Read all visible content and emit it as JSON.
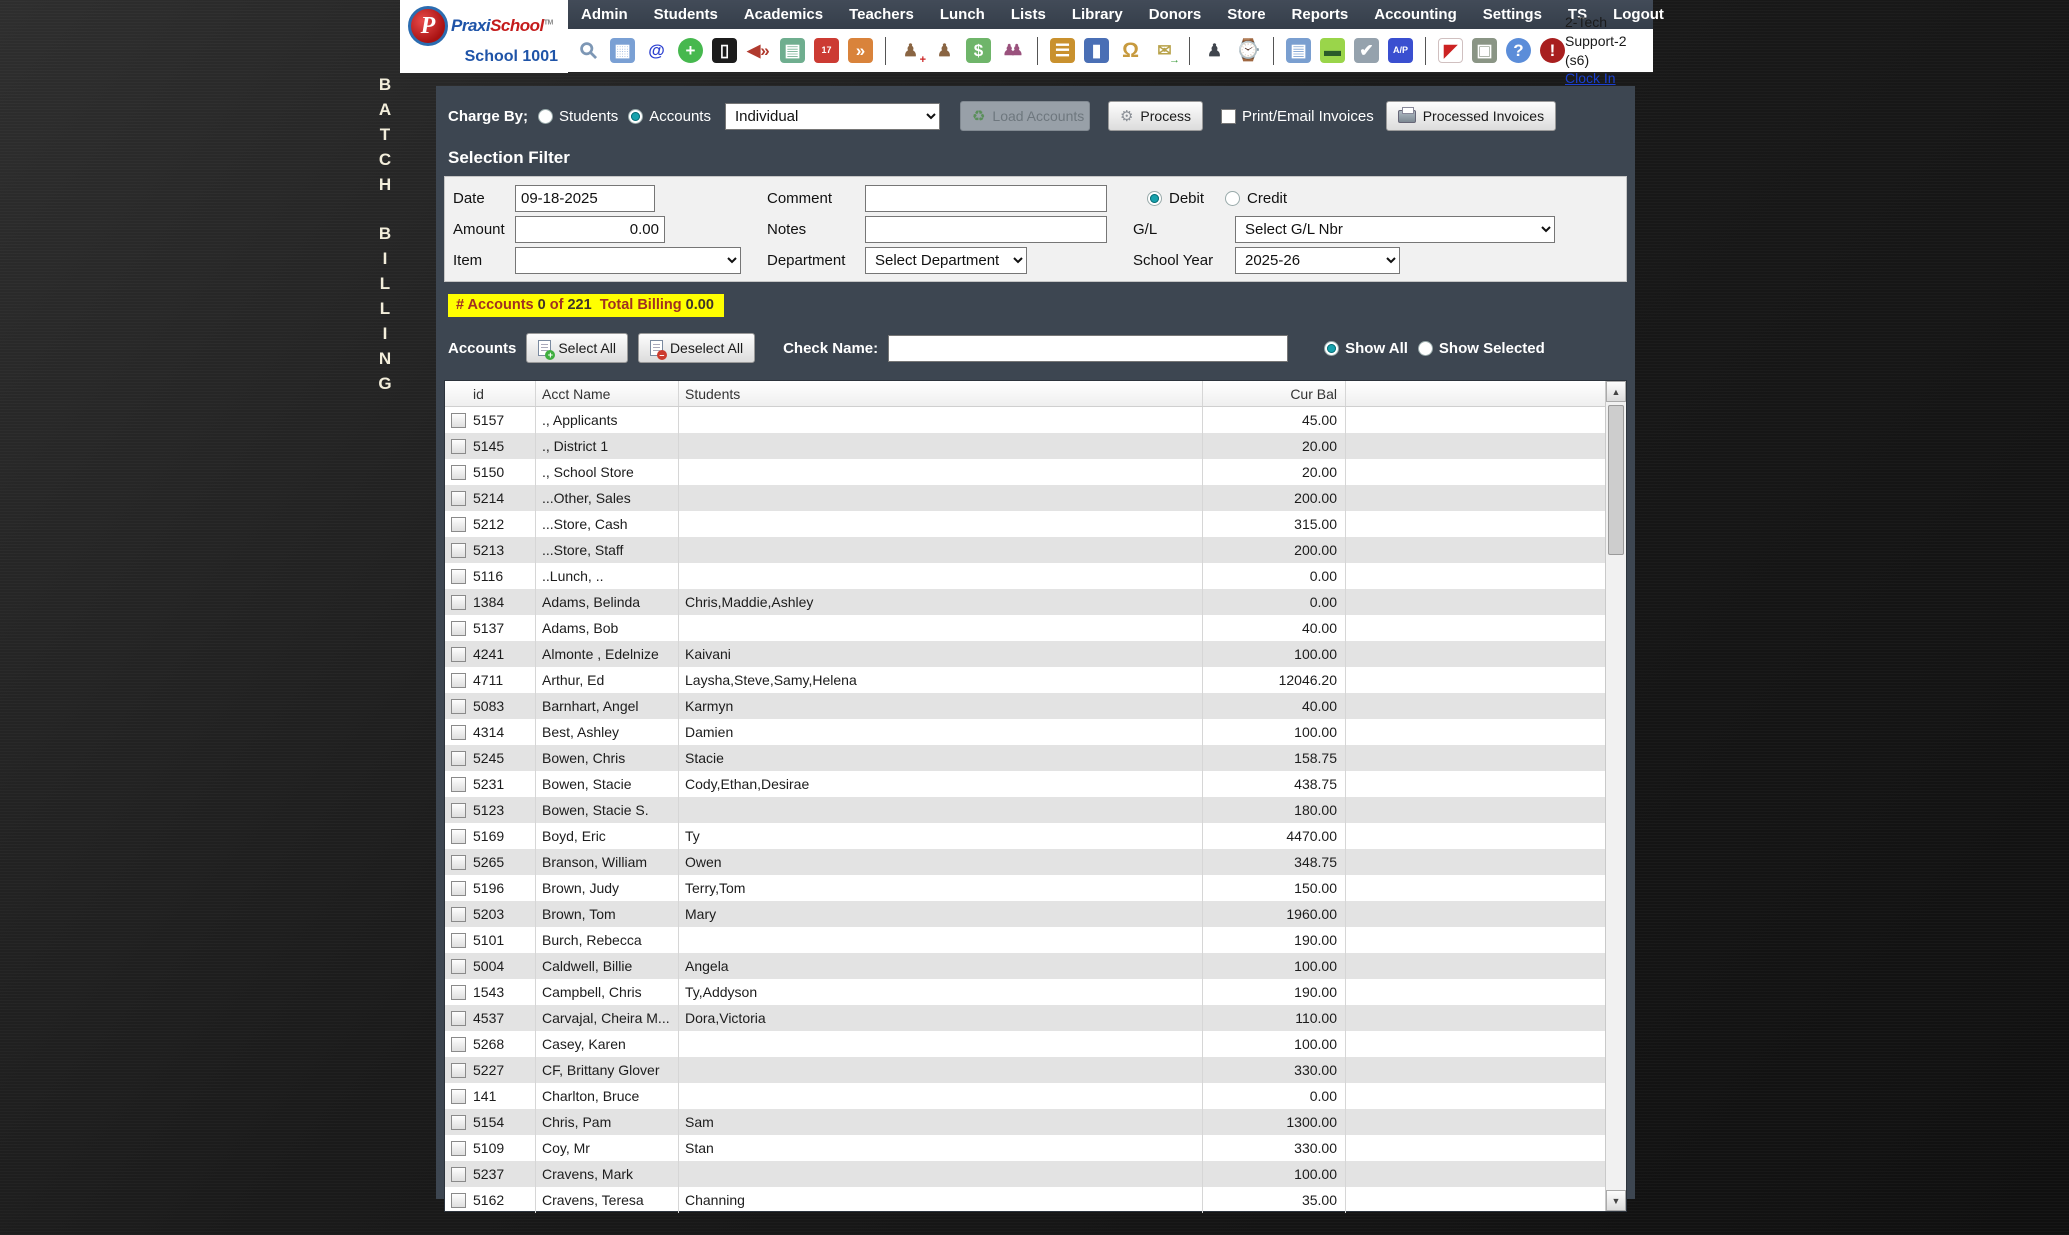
{
  "colors": {
    "teal": "#18a2ad",
    "nav_bg": "#3a4350",
    "panel_bg": "#3d4651",
    "highlight_yellow": "#ffff00",
    "maroon": "#a03022"
  },
  "vertical_banner": {
    "line1": "BATCH",
    "line2": "BILLING"
  },
  "header": {
    "logo": {
      "monogram": "P",
      "brand_part1": "Praxi",
      "brand_part2": "School",
      "trademark": "TM",
      "school_label": "School 1001"
    },
    "nav_items": [
      "Admin",
      "Students",
      "Academics",
      "Teachers",
      "Lunch",
      "Lists",
      "Library",
      "Donors",
      "Store",
      "Reports",
      "Accounting",
      "Settings",
      "TS",
      "Logout"
    ],
    "toolbar_groups": [
      [
        {
          "name": "search-icon",
          "glyph": "⚲",
          "fg": "#7d97b5",
          "cls": "rot"
        },
        {
          "name": "calendar-grid-icon",
          "glyph": "▦",
          "fg": "#fff",
          "bg": "#7aa0d4"
        },
        {
          "name": "email-at-icon",
          "glyph": "@",
          "fg": "#2b3fd0"
        },
        {
          "name": "chat-add-icon",
          "glyph": "+",
          "fg": "#fff",
          "bg": "#46b84e",
          "cls": "round"
        },
        {
          "name": "mobile-phone-icon",
          "glyph": "▯",
          "fg": "#fff",
          "bg": "#1c1c1c"
        },
        {
          "name": "speaker-icon",
          "glyph": "◀»",
          "fg": "#b03a2e"
        },
        {
          "name": "schedule-icon",
          "glyph": "▤",
          "fg": "#fff",
          "bg": "#6fae8f"
        },
        {
          "name": "calendar-date-icon",
          "glyph": "17",
          "fg": "#fff",
          "bg": "#cc3b33",
          "cls": "tiny"
        },
        {
          "name": "megaphone-icon",
          "glyph": "»",
          "fg": "#fff",
          "bg": "#d9833b"
        }
      ],
      [
        {
          "name": "add-student-icon",
          "glyph": "♟",
          "fg": "#8a6543",
          "badge": "+",
          "badge_color": "#cc2222"
        },
        {
          "name": "student-icon",
          "glyph": "♟",
          "fg": "#8a6543"
        },
        {
          "name": "cash-icon",
          "glyph": "$",
          "fg": "#fff",
          "bg": "#6fb56a"
        },
        {
          "name": "family-icon",
          "glyph": "♟♟",
          "fg": "#9a527d",
          "cls": "squeeze"
        }
      ],
      [
        {
          "name": "lunch-burger-icon",
          "glyph": "☰",
          "fg": "#fff",
          "bg": "#c9912e"
        },
        {
          "name": "binder-icon",
          "glyph": "▮",
          "fg": "#fff",
          "bg": "#4a6fb5"
        },
        {
          "name": "bell-icon",
          "glyph": "Ω",
          "fg": "#c79a3e",
          "cls": "big"
        },
        {
          "name": "send-message-icon",
          "glyph": "✉",
          "fg": "#b8a24a",
          "badge": "→",
          "badge_color": "#3a9a3a"
        }
      ],
      [
        {
          "name": "teacher-icon",
          "glyph": "♟",
          "fg": "#40454d"
        },
        {
          "name": "alarm-clock-icon",
          "glyph": "⌚",
          "fg": "#4a7fd1",
          "cls": "big"
        }
      ],
      [
        {
          "name": "ledger-icon",
          "glyph": "▤",
          "fg": "#fff",
          "bg": "#7a9fd0"
        },
        {
          "name": "credit-card-icon",
          "glyph": "▬",
          "fg": "#2a5a2a",
          "bg": "#9ad54a"
        },
        {
          "name": "print-check-icon",
          "glyph": "✔",
          "fg": "#fff",
          "bg": "#95a2ad"
        },
        {
          "name": "ap-icon",
          "glyph": "A/P",
          "fg": "#fff",
          "bg": "#3a4fd0",
          "cls": "tiny"
        }
      ],
      [
        {
          "name": "pdf-icon",
          "glyph": "◤",
          "fg": "#cc2222",
          "bg": "#ffffff",
          "cls": "bordered"
        },
        {
          "name": "cash-register-icon",
          "glyph": "▣",
          "fg": "#fff",
          "bg": "#8a9585"
        },
        {
          "name": "help-icon",
          "glyph": "?",
          "fg": "#fff",
          "bg": "#5b8dd9",
          "cls": "round"
        },
        {
          "name": "alert-icon",
          "glyph": "!",
          "fg": "#fff",
          "bg": "#a81f1f",
          "cls": "round"
        }
      ]
    ],
    "user_label": "2-Tech Support-2 (s6)",
    "clock_in_label": "Clock In"
  },
  "charge_by": {
    "label": "Charge By;",
    "options": [
      {
        "label": "Students",
        "selected": false
      },
      {
        "label": "Accounts",
        "selected": true
      }
    ],
    "mode_value": "Individual",
    "load_accounts_label": "Load Accounts",
    "process_label": "Process",
    "print_email": {
      "label": "Print/Email Invoices",
      "checked": false
    },
    "processed_invoices_label": "Processed Invoices"
  },
  "selection_filter": {
    "title": "Selection Filter",
    "date": {
      "label": "Date",
      "value": "09-18-2025"
    },
    "amount": {
      "label": "Amount",
      "value": "0.00"
    },
    "item": {
      "label": "Item",
      "value": ""
    },
    "comment": {
      "label": "Comment",
      "value": ""
    },
    "notes": {
      "label": "Notes",
      "value": ""
    },
    "department": {
      "label": "Department",
      "value": "Select Department"
    },
    "debit_credit": [
      {
        "label": "Debit",
        "selected": true
      },
      {
        "label": "Credit",
        "selected": false
      }
    ],
    "gl": {
      "label": "G/L",
      "value": "Select G/L Nbr"
    },
    "school_year": {
      "label": "School Year",
      "value": "2025-26"
    }
  },
  "status_bar": {
    "accounts_label": "# Accounts",
    "selected_count": "0",
    "of_label": "of",
    "total_count": "221",
    "billing_label": "Total Billing",
    "billing_amount": "0.00"
  },
  "accounts_toolbar": {
    "label": "Accounts",
    "select_all_label": "Select All",
    "deselect_all_label": "Deselect All",
    "check_name_label": "Check Name:",
    "check_name_value": "",
    "show_options": [
      {
        "label": "Show All",
        "selected": true
      },
      {
        "label": "Show Selected",
        "selected": false
      }
    ]
  },
  "table": {
    "columns": [
      "id",
      "Acct Name",
      "Students",
      "Cur Bal"
    ],
    "rows": [
      {
        "id": "5157",
        "name": "., Applicants",
        "students": "",
        "balance": "45.00"
      },
      {
        "id": "5145",
        "name": "., District 1",
        "students": "",
        "balance": "20.00"
      },
      {
        "id": "5150",
        "name": "., School Store",
        "students": "",
        "balance": "20.00"
      },
      {
        "id": "5214",
        "name": "...Other, Sales",
        "students": "",
        "balance": "200.00"
      },
      {
        "id": "5212",
        "name": "...Store, Cash",
        "students": "",
        "balance": "315.00"
      },
      {
        "id": "5213",
        "name": "...Store, Staff",
        "students": "",
        "balance": "200.00"
      },
      {
        "id": "5116",
        "name": "..Lunch, ..",
        "students": "",
        "balance": "0.00"
      },
      {
        "id": "1384",
        "name": "Adams, Belinda",
        "students": "Chris,Maddie,Ashley",
        "balance": "0.00"
      },
      {
        "id": "5137",
        "name": "Adams, Bob",
        "students": "",
        "balance": "40.00"
      },
      {
        "id": "4241",
        "name": "Almonte , Edelnize",
        "students": "Kaivani",
        "balance": "100.00"
      },
      {
        "id": "4711",
        "name": "Arthur, Ed",
        "students": "Laysha,Steve,Samy,Helena",
        "balance": "12046.20"
      },
      {
        "id": "5083",
        "name": "Barnhart, Angel",
        "students": "Karmyn",
        "balance": "40.00"
      },
      {
        "id": "4314",
        "name": "Best, Ashley",
        "students": "Damien",
        "balance": "100.00"
      },
      {
        "id": "5245",
        "name": "Bowen, Chris",
        "students": "Stacie",
        "balance": "158.75"
      },
      {
        "id": "5231",
        "name": "Bowen, Stacie",
        "students": "Cody,Ethan,Desirae",
        "balance": "438.75"
      },
      {
        "id": "5123",
        "name": "Bowen, Stacie S.",
        "students": "",
        "balance": "180.00"
      },
      {
        "id": "5169",
        "name": "Boyd, Eric",
        "students": "Ty",
        "balance": "4470.00"
      },
      {
        "id": "5265",
        "name": "Branson, William",
        "students": "Owen",
        "balance": "348.75"
      },
      {
        "id": "5196",
        "name": "Brown, Judy",
        "students": "Terry,Tom",
        "balance": "150.00"
      },
      {
        "id": "5203",
        "name": "Brown, Tom",
        "students": "Mary",
        "balance": "1960.00"
      },
      {
        "id": "5101",
        "name": "Burch, Rebecca",
        "students": "",
        "balance": "190.00"
      },
      {
        "id": "5004",
        "name": "Caldwell, Billie",
        "students": "Angela",
        "balance": "100.00"
      },
      {
        "id": "1543",
        "name": "Campbell, Chris",
        "students": "Ty,Addyson",
        "balance": "190.00"
      },
      {
        "id": "4537",
        "name": "Carvajal, Cheira M...",
        "students": "Dora,Victoria",
        "balance": "110.00"
      },
      {
        "id": "5268",
        "name": "Casey, Karen",
        "students": "",
        "balance": "100.00"
      },
      {
        "id": "5227",
        "name": "CF, Brittany Glover",
        "students": "",
        "balance": "330.00"
      },
      {
        "id": "141",
        "name": "Charlton, Bruce",
        "students": "",
        "balance": "0.00"
      },
      {
        "id": "5154",
        "name": "Chris, Pam",
        "students": "Sam",
        "balance": "1300.00"
      },
      {
        "id": "5109",
        "name": "Coy, Mr",
        "students": "Stan",
        "balance": "330.00"
      },
      {
        "id": "5237",
        "name": "Cravens, Mark",
        "students": "",
        "balance": "100.00"
      },
      {
        "id": "5162",
        "name": "Cravens, Teresa",
        "students": "Channing",
        "balance": "35.00"
      }
    ]
  }
}
